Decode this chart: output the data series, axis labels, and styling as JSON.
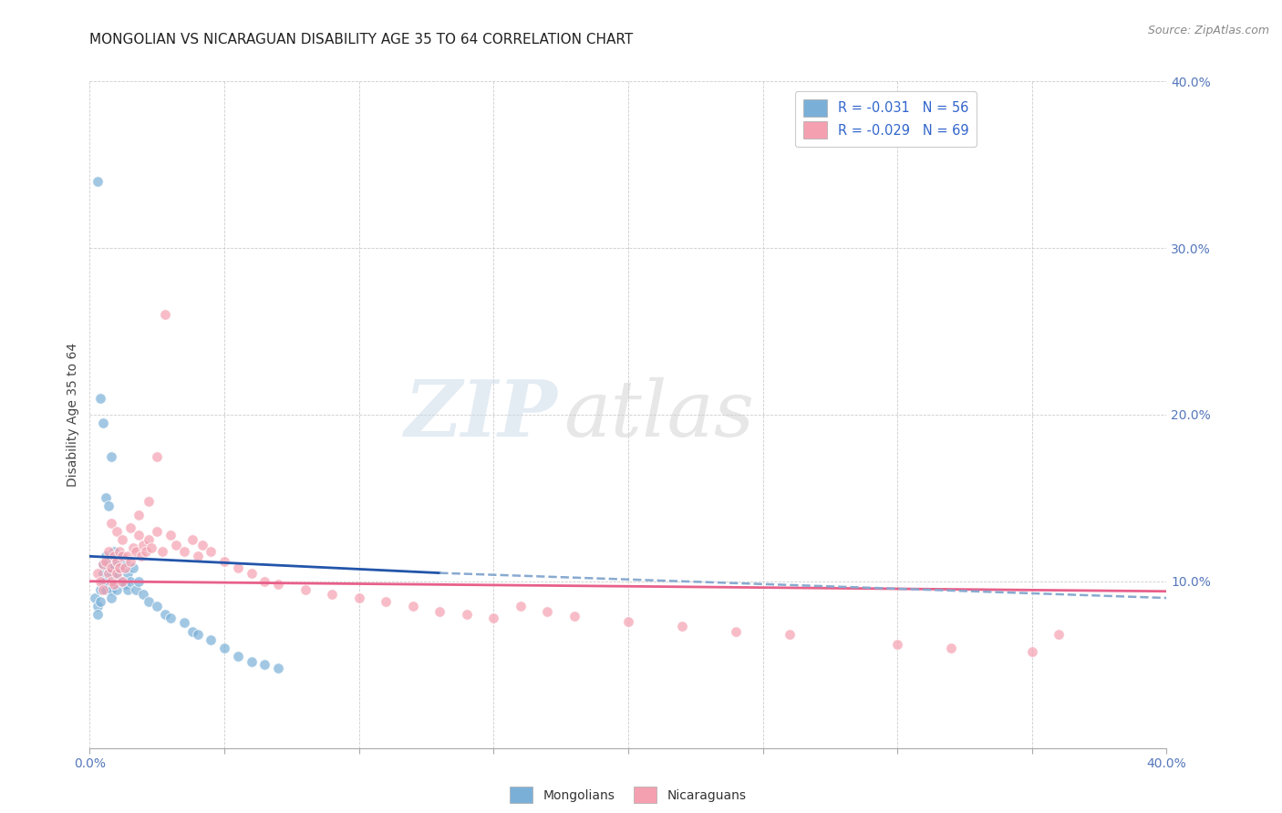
{
  "title": "MONGOLIAN VS NICARAGUAN DISABILITY AGE 35 TO 64 CORRELATION CHART",
  "source": "Source: ZipAtlas.com",
  "ylabel": "Disability Age 35 to 64",
  "xlim": [
    0.0,
    0.4
  ],
  "ylim": [
    0.0,
    0.4
  ],
  "mongolian_color": "#7ab0d8",
  "nicaraguan_color": "#f4a0b0",
  "trend_mongolian_color": "#2255aa",
  "trend_nicaraguan_color": "#e8608a",
  "trend_dashed_color": "#88aad0",
  "background_color": "#ffffff",
  "grid_color": "#cccccc",
  "watermark_zip": "ZIP",
  "watermark_atlas": "atlas",
  "title_fontsize": 11,
  "mong_x": [
    0.002,
    0.003,
    0.003,
    0.004,
    0.004,
    0.005,
    0.005,
    0.005,
    0.006,
    0.006,
    0.006,
    0.007,
    0.007,
    0.007,
    0.008,
    0.008,
    0.008,
    0.008,
    0.009,
    0.009,
    0.009,
    0.01,
    0.01,
    0.01,
    0.011,
    0.011,
    0.012,
    0.012,
    0.013,
    0.013,
    0.014,
    0.014,
    0.015,
    0.016,
    0.017,
    0.018,
    0.02,
    0.022,
    0.025,
    0.028,
    0.03,
    0.035,
    0.038,
    0.04,
    0.045,
    0.05,
    0.055,
    0.06,
    0.065,
    0.07,
    0.003,
    0.004,
    0.005,
    0.006,
    0.007,
    0.008
  ],
  "mong_y": [
    0.09,
    0.085,
    0.08,
    0.088,
    0.095,
    0.1,
    0.11,
    0.105,
    0.095,
    0.1,
    0.115,
    0.108,
    0.112,
    0.098,
    0.105,
    0.115,
    0.095,
    0.09,
    0.11,
    0.118,
    0.1,
    0.112,
    0.105,
    0.095,
    0.115,
    0.108,
    0.11,
    0.1,
    0.112,
    0.098,
    0.105,
    0.095,
    0.1,
    0.108,
    0.095,
    0.1,
    0.092,
    0.088,
    0.085,
    0.08,
    0.078,
    0.075,
    0.07,
    0.068,
    0.065,
    0.06,
    0.055,
    0.052,
    0.05,
    0.048,
    0.34,
    0.21,
    0.195,
    0.15,
    0.145,
    0.175
  ],
  "nica_x": [
    0.003,
    0.004,
    0.005,
    0.005,
    0.006,
    0.007,
    0.007,
    0.008,
    0.008,
    0.009,
    0.009,
    0.01,
    0.01,
    0.011,
    0.011,
    0.012,
    0.012,
    0.013,
    0.014,
    0.015,
    0.016,
    0.017,
    0.018,
    0.019,
    0.02,
    0.021,
    0.022,
    0.023,
    0.025,
    0.027,
    0.03,
    0.032,
    0.035,
    0.038,
    0.04,
    0.042,
    0.045,
    0.05,
    0.055,
    0.06,
    0.065,
    0.07,
    0.08,
    0.09,
    0.1,
    0.11,
    0.12,
    0.13,
    0.14,
    0.15,
    0.16,
    0.17,
    0.18,
    0.2,
    0.22,
    0.24,
    0.26,
    0.3,
    0.32,
    0.35,
    0.028,
    0.025,
    0.008,
    0.01,
    0.012,
    0.015,
    0.018,
    0.022,
    0.36
  ],
  "nica_y": [
    0.105,
    0.1,
    0.11,
    0.095,
    0.112,
    0.118,
    0.105,
    0.108,
    0.1,
    0.115,
    0.098,
    0.112,
    0.105,
    0.118,
    0.108,
    0.115,
    0.1,
    0.108,
    0.115,
    0.112,
    0.12,
    0.118,
    0.128,
    0.115,
    0.122,
    0.118,
    0.125,
    0.12,
    0.13,
    0.118,
    0.128,
    0.122,
    0.118,
    0.125,
    0.115,
    0.122,
    0.118,
    0.112,
    0.108,
    0.105,
    0.1,
    0.098,
    0.095,
    0.092,
    0.09,
    0.088,
    0.085,
    0.082,
    0.08,
    0.078,
    0.085,
    0.082,
    0.079,
    0.076,
    0.073,
    0.07,
    0.068,
    0.062,
    0.06,
    0.058,
    0.26,
    0.175,
    0.135,
    0.13,
    0.125,
    0.132,
    0.14,
    0.148,
    0.068
  ],
  "mong_trend_x": [
    0.0,
    0.13
  ],
  "mong_trend_y": [
    0.115,
    0.105
  ],
  "nica_trend_x": [
    0.0,
    0.4
  ],
  "nica_trend_y": [
    0.1,
    0.094
  ],
  "dashed_trend_x": [
    0.13,
    0.4
  ],
  "dashed_trend_y": [
    0.105,
    0.09
  ]
}
